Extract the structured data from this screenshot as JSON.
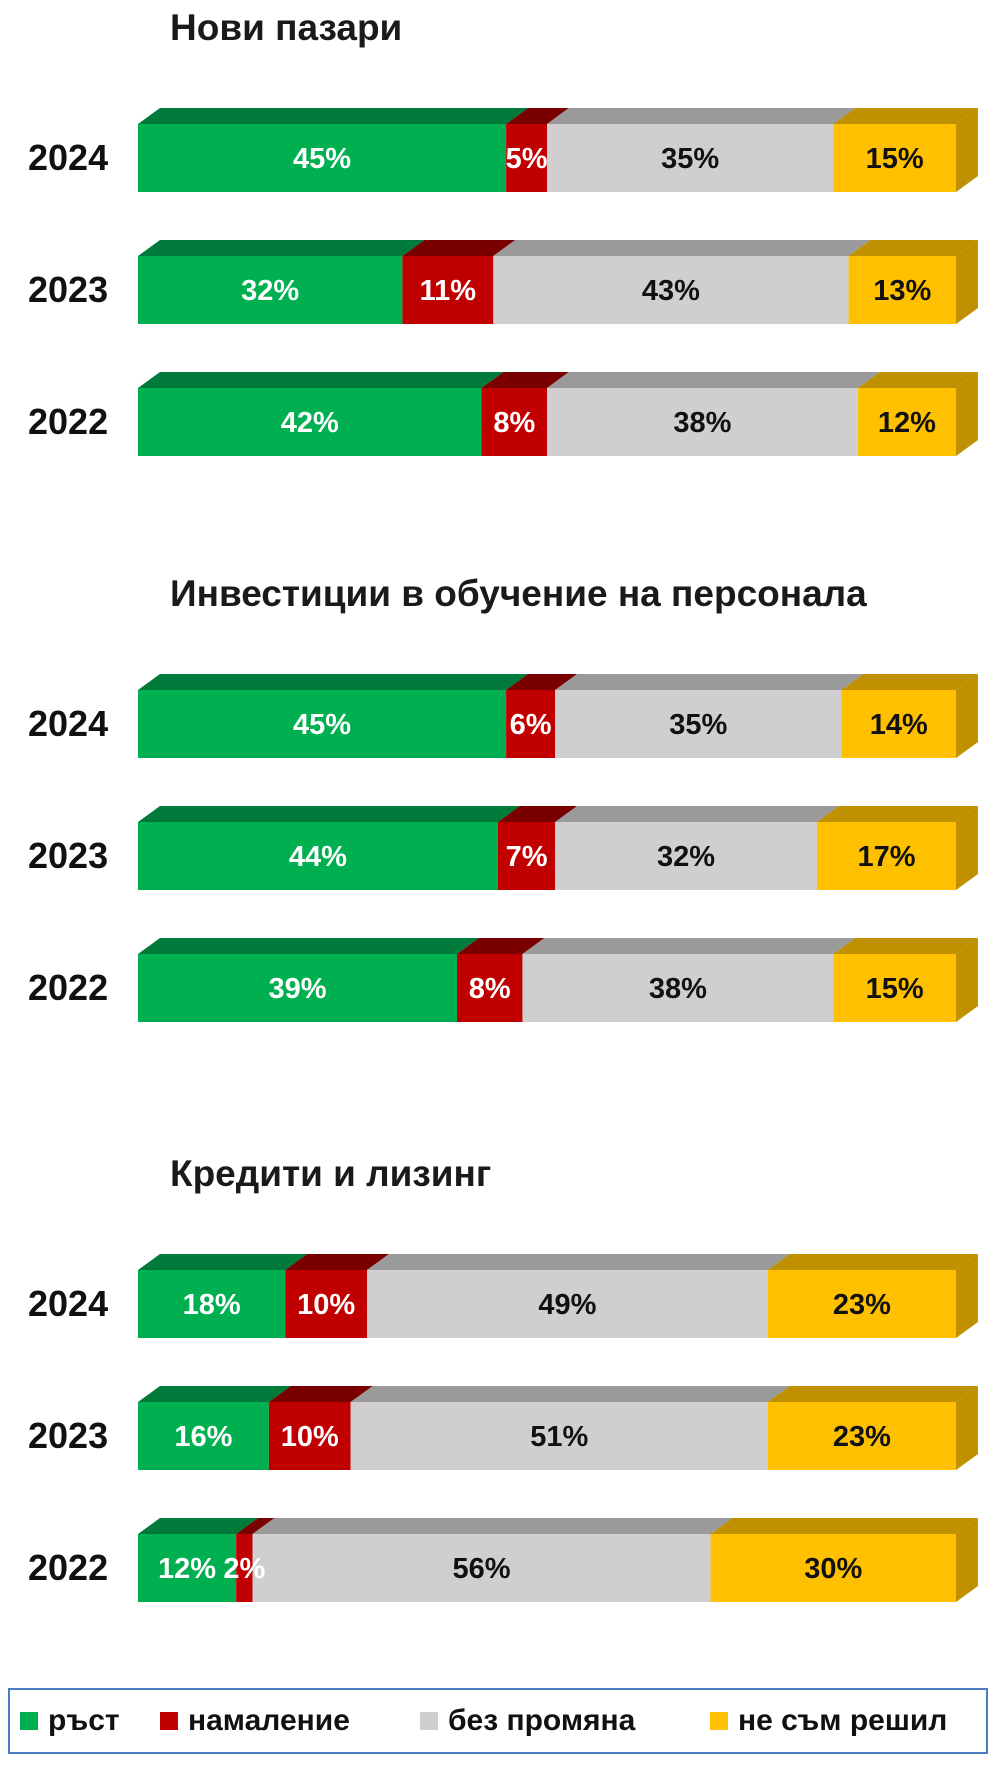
{
  "colors": {
    "growth": "#00b050",
    "growth_top": "#007a3a",
    "decrease": "#c00000",
    "decrease_top": "#7a0000",
    "no_change": "#d0cece",
    "no_change_top": "#9a9a9a",
    "undecided": "#ffc000",
    "undecided_top": "#bf9000",
    "legend_border": "#4a7ec0"
  },
  "legend": [
    {
      "key": "growth",
      "label": "ръст"
    },
    {
      "key": "decrease",
      "label": "намаление"
    },
    {
      "key": "no_change",
      "label": "без промяна"
    },
    {
      "key": "undecided",
      "label": "не съм решил"
    }
  ],
  "chart_data": [
    {
      "type": "bar",
      "stacked": true,
      "orientation": "horizontal",
      "title": "Нови пазари",
      "categories": [
        "2024",
        "2023",
        "2022"
      ],
      "series": [
        {
          "name": "ръст",
          "values": [
            45,
            32,
            42
          ],
          "labels": [
            "45%",
            "32%",
            "42%"
          ]
        },
        {
          "name": "намаление",
          "values": [
            5,
            11,
            8
          ],
          "labels": [
            "5%",
            "11%",
            "8%"
          ]
        },
        {
          "name": "без промяна",
          "values": [
            35,
            43,
            38
          ],
          "labels": [
            "35%",
            "43%",
            "38%"
          ]
        },
        {
          "name": "не съм решил",
          "values": [
            15,
            13,
            12
          ],
          "labels": [
            "15%",
            "13%",
            "12%"
          ]
        }
      ]
    },
    {
      "type": "bar",
      "stacked": true,
      "orientation": "horizontal",
      "title": "Инвестиции в обучение на персонала",
      "categories": [
        "2024",
        "2023",
        "2022"
      ],
      "series": [
        {
          "name": "ръст",
          "values": [
            45,
            44,
            39
          ],
          "labels": [
            "45%",
            "44%",
            "39%"
          ]
        },
        {
          "name": "намаление",
          "values": [
            6,
            7,
            8
          ],
          "labels": [
            "6%",
            "7%",
            "8%"
          ]
        },
        {
          "name": "без промяна",
          "values": [
            35,
            32,
            38
          ],
          "labels": [
            "35%",
            "32%",
            "38%"
          ]
        },
        {
          "name": "не съм решил",
          "values": [
            14,
            17,
            15
          ],
          "labels": [
            "14%",
            "17%",
            "15%"
          ]
        }
      ]
    },
    {
      "type": "bar",
      "stacked": true,
      "orientation": "horizontal",
      "title": "Кредити и лизинг",
      "categories": [
        "2024",
        "2023",
        "2022"
      ],
      "series": [
        {
          "name": "ръст",
          "values": [
            18,
            16,
            12
          ],
          "labels": [
            "18%",
            "16%",
            "12%"
          ]
        },
        {
          "name": "намаление",
          "values": [
            10,
            10,
            2
          ],
          "labels": [
            "10%",
            "10%",
            "2%"
          ]
        },
        {
          "name": "без промяна",
          "values": [
            49,
            51,
            56
          ],
          "labels": [
            "49%",
            "51%",
            "56%"
          ]
        },
        {
          "name": "не съм решил",
          "values": [
            23,
            23,
            30
          ],
          "labels": [
            "23%",
            "23%",
            "30%"
          ]
        }
      ]
    }
  ]
}
